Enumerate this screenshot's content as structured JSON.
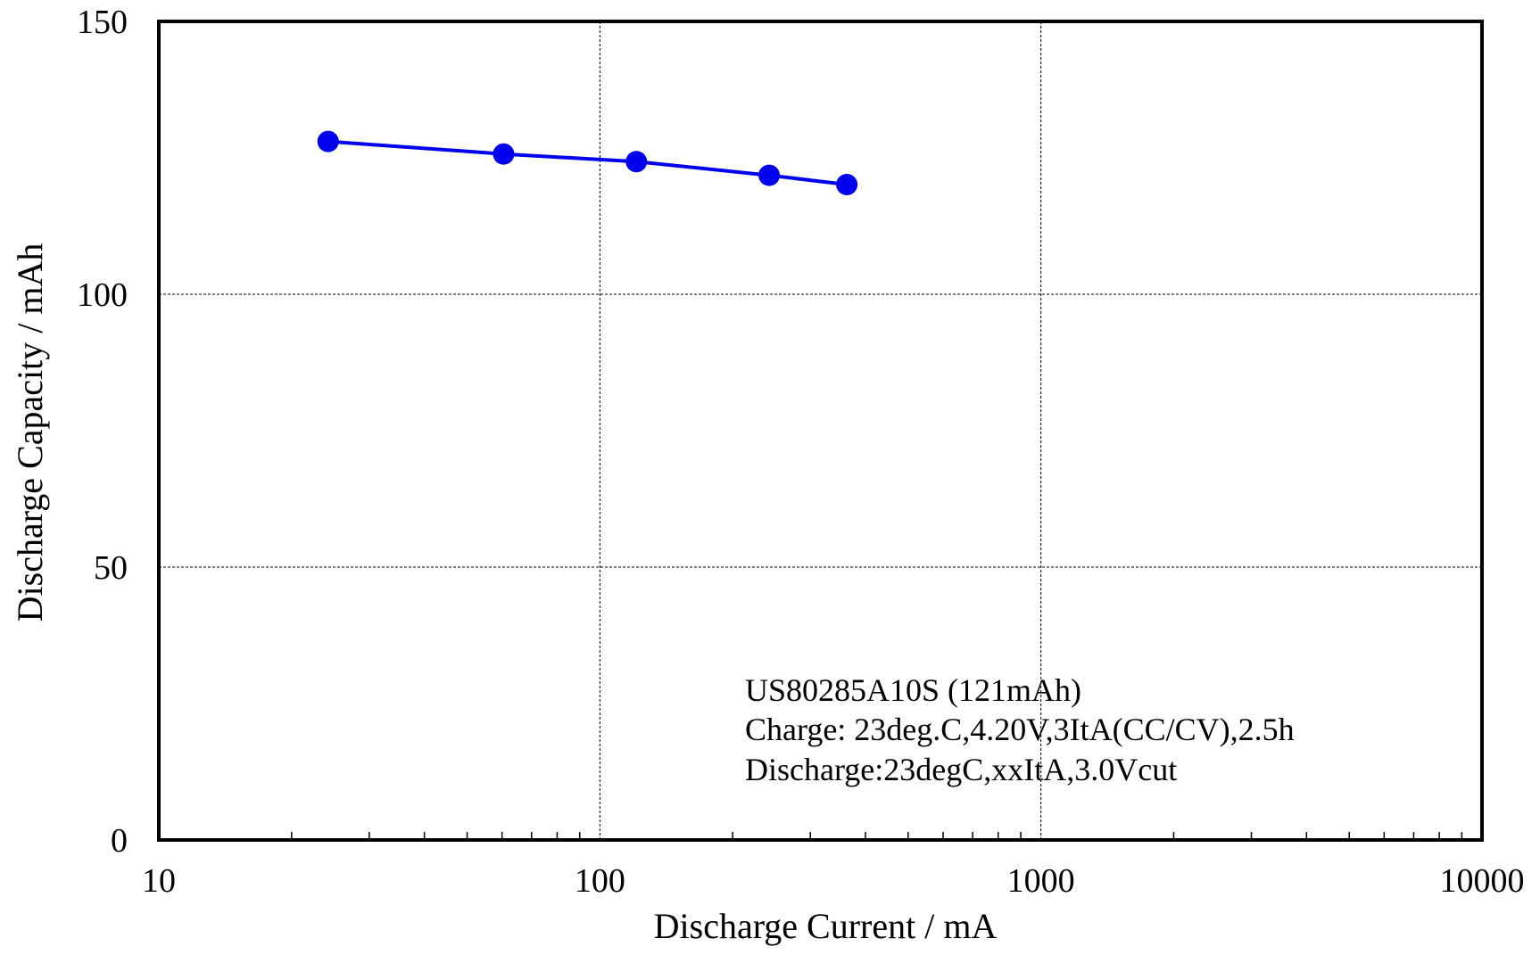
{
  "chart_data": {
    "type": "line",
    "title": "",
    "xlabel": "Discharge Current / mA",
    "ylabel": "Discharge Capacity / mAh",
    "x_scale": "log",
    "xlim": [
      10,
      10000
    ],
    "ylim": [
      0,
      150
    ],
    "x_ticks": [
      10,
      100,
      1000,
      10000
    ],
    "x_tick_labels": [
      "10",
      "100",
      "1000",
      "10000"
    ],
    "y_ticks": [
      0,
      50,
      100,
      150
    ],
    "y_tick_labels": [
      "0",
      "50",
      "100",
      "150"
    ],
    "grid": true,
    "series": [
      {
        "x": [
          24.2,
          60.5,
          121,
          242,
          363
        ],
        "y": [
          128,
          125.7,
          124.3,
          121.8,
          120.1
        ],
        "color": "#0000ee",
        "marker": "circle"
      }
    ],
    "annotations": [
      "US80285A10S (121mAh)",
      "Charge: 23deg.C,4.20V,3ItA(CC/CV),2.5h",
      "Discharge:23degC,xxItA,3.0Vcut"
    ]
  }
}
